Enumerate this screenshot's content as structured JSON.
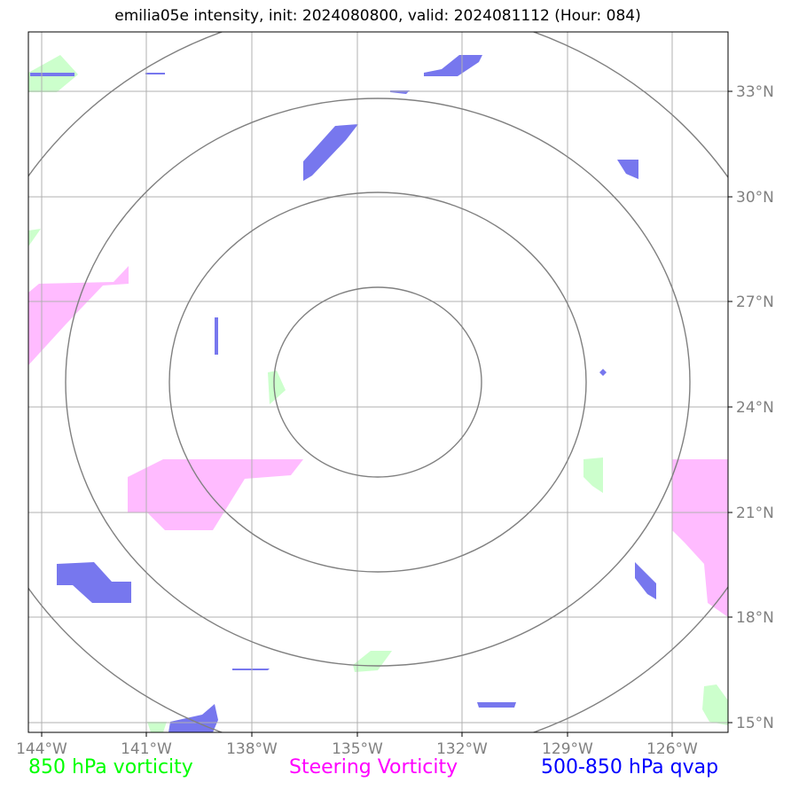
{
  "title": "emilia05e intensity, init: 2024080800, valid: 2024081112 (Hour: 084)",
  "colors": {
    "vort850": "#ccffcc",
    "steering": "#ffbbff",
    "qvap": "#7777ee",
    "grid": "#b0b0b0",
    "rings": "#808080"
  },
  "axes": {
    "x_ticks": [
      "144°W",
      "141°W",
      "138°W",
      "135°W",
      "132°W",
      "129°W",
      "126°W"
    ],
    "y_ticks": [
      "33°N",
      "30°N",
      "27°N",
      "24°N",
      "21°N",
      "18°N",
      "15°N"
    ]
  },
  "legend": {
    "vort850": "850 hPa vorticity",
    "steering": "Steering Vorticity",
    "qvap": "500-850 hPa qvap"
  }
}
